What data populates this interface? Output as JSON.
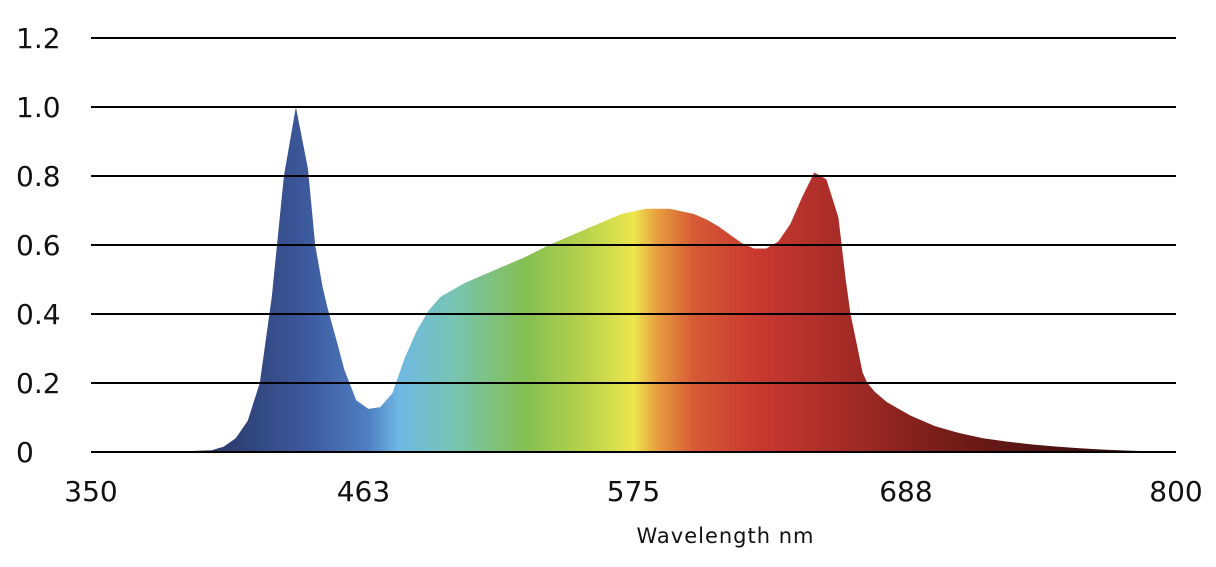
{
  "chart_data": {
    "type": "area",
    "title": "",
    "xlabel": "Wavelength  nm",
    "ylabel": "",
    "xlim": [
      350,
      800
    ],
    "ylim": [
      0,
      1.2
    ],
    "x_ticks": [
      350,
      463,
      575,
      688,
      800
    ],
    "x_tick_labels": [
      "350",
      "463",
      "575",
      "688",
      "800"
    ],
    "y_ticks": [
      0,
      0.2,
      0.4,
      0.6,
      0.8,
      1.0,
      1.2
    ],
    "y_tick_labels": [
      "0",
      "0.2",
      "0.4",
      "0.6",
      "0.8",
      "1.0",
      "1.2"
    ],
    "grid": true,
    "legend": "none",
    "series": [
      {
        "x": [
          350,
          380,
          400,
          405,
          410,
          415,
          420,
          425,
          430,
          435,
          440,
          443,
          446,
          448,
          450,
          452,
          455,
          460,
          465,
          470,
          475,
          480,
          485,
          490,
          495,
          500,
          505,
          510,
          515,
          520,
          525,
          530,
          540,
          550,
          560,
          570,
          580,
          590,
          600,
          605,
          610,
          615,
          620,
          625,
          630,
          635,
          640,
          645,
          650,
          655,
          660,
          663,
          665,
          668,
          670,
          672,
          675,
          680,
          685,
          690,
          695,
          700,
          710,
          720,
          730,
          740,
          750,
          760,
          770,
          780,
          790,
          800
        ],
        "y": [
          0,
          0,
          0.005,
          0.015,
          0.04,
          0.09,
          0.2,
          0.45,
          0.8,
          1.0,
          0.82,
          0.6,
          0.48,
          0.42,
          0.37,
          0.32,
          0.24,
          0.15,
          0.125,
          0.13,
          0.17,
          0.27,
          0.35,
          0.41,
          0.45,
          0.47,
          0.49,
          0.505,
          0.52,
          0.535,
          0.55,
          0.565,
          0.6,
          0.63,
          0.66,
          0.69,
          0.705,
          0.705,
          0.69,
          0.675,
          0.655,
          0.63,
          0.605,
          0.59,
          0.59,
          0.61,
          0.66,
          0.74,
          0.81,
          0.79,
          0.68,
          0.5,
          0.4,
          0.3,
          0.23,
          0.2,
          0.175,
          0.145,
          0.125,
          0.105,
          0.09,
          0.075,
          0.055,
          0.04,
          0.03,
          0.022,
          0.016,
          0.011,
          0.007,
          0.004,
          0.002,
          0
        ]
      }
    ],
    "colors": {
      "gradient_stops": [
        {
          "wavelength": 405,
          "color": "#2b3c6e"
        },
        {
          "wavelength": 440,
          "color": "#3d5a9e"
        },
        {
          "wavelength": 465,
          "color": "#4f7fc2"
        },
        {
          "wavelength": 478,
          "color": "#6fb9e3"
        },
        {
          "wavelength": 500,
          "color": "#78c4b4"
        },
        {
          "wavelength": 530,
          "color": "#84bf52"
        },
        {
          "wavelength": 555,
          "color": "#b8d24c"
        },
        {
          "wavelength": 575,
          "color": "#ece64e"
        },
        {
          "wavelength": 585,
          "color": "#e89d40"
        },
        {
          "wavelength": 600,
          "color": "#d65a36"
        },
        {
          "wavelength": 625,
          "color": "#c93a30"
        },
        {
          "wavelength": 665,
          "color": "#a32a26"
        },
        {
          "wavelength": 700,
          "color": "#7a1e1a"
        },
        {
          "wavelength": 760,
          "color": "#421010"
        },
        {
          "wavelength": 800,
          "color": "#2a0a08"
        }
      ],
      "grid": "#000000"
    }
  }
}
